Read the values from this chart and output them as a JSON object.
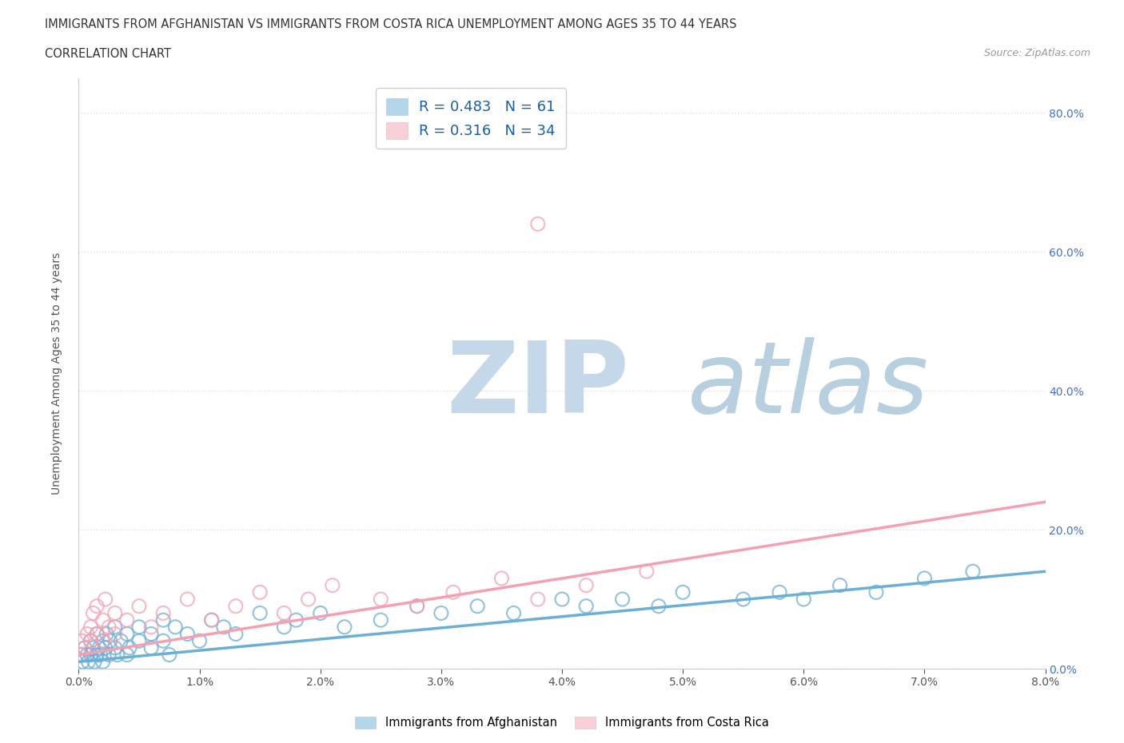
{
  "title_line1": "IMMIGRANTS FROM AFGHANISTAN VS IMMIGRANTS FROM COSTA RICA UNEMPLOYMENT AMONG AGES 35 TO 44 YEARS",
  "title_line2": "CORRELATION CHART",
  "source_text": "Source: ZipAtlas.com",
  "ylabel": "Unemployment Among Ages 35 to 44 years",
  "xlim": [
    0.0,
    0.08
  ],
  "ylim": [
    0.0,
    0.85
  ],
  "xticks": [
    0.0,
    0.01,
    0.02,
    0.03,
    0.04,
    0.05,
    0.06,
    0.07,
    0.08
  ],
  "xtick_labels": [
    "0.0%",
    "1.0%",
    "2.0%",
    "3.0%",
    "4.0%",
    "5.0%",
    "6.0%",
    "7.0%",
    "8.0%"
  ],
  "yticks": [
    0.0,
    0.2,
    0.4,
    0.6,
    0.8
  ],
  "ytick_labels": [
    "0.0%",
    "20.0%",
    "40.0%",
    "60.0%",
    "80.0%"
  ],
  "afghanistan_R": 0.483,
  "afghanistan_N": 61,
  "costarica_R": 0.316,
  "costarica_N": 34,
  "afghanistan_color": "#6baed6",
  "costarica_color": "#f4a0b0",
  "afghanistan_scatter_x": [
    0.0002,
    0.0003,
    0.0005,
    0.0007,
    0.0008,
    0.001,
    0.001,
    0.0012,
    0.0013,
    0.0015,
    0.0015,
    0.0017,
    0.0018,
    0.002,
    0.002,
    0.0022,
    0.0023,
    0.0025,
    0.0026,
    0.003,
    0.003,
    0.0032,
    0.0035,
    0.004,
    0.004,
    0.0042,
    0.005,
    0.005,
    0.006,
    0.006,
    0.007,
    0.007,
    0.0075,
    0.008,
    0.009,
    0.01,
    0.011,
    0.012,
    0.013,
    0.015,
    0.017,
    0.018,
    0.02,
    0.022,
    0.025,
    0.028,
    0.03,
    0.033,
    0.036,
    0.04,
    0.042,
    0.045,
    0.048,
    0.05,
    0.055,
    0.058,
    0.06,
    0.063,
    0.066,
    0.07,
    0.074
  ],
  "afghanistan_scatter_y": [
    0.02,
    0.01,
    0.03,
    0.02,
    0.01,
    0.04,
    0.02,
    0.03,
    0.01,
    0.02,
    0.05,
    0.03,
    0.02,
    0.04,
    0.01,
    0.03,
    0.05,
    0.02,
    0.04,
    0.03,
    0.06,
    0.02,
    0.04,
    0.05,
    0.02,
    0.03,
    0.04,
    0.06,
    0.05,
    0.03,
    0.07,
    0.04,
    0.02,
    0.06,
    0.05,
    0.04,
    0.07,
    0.06,
    0.05,
    0.08,
    0.06,
    0.07,
    0.08,
    0.06,
    0.07,
    0.09,
    0.08,
    0.09,
    0.08,
    0.1,
    0.09,
    0.1,
    0.09,
    0.11,
    0.1,
    0.11,
    0.1,
    0.12,
    0.11,
    0.13,
    0.14
  ],
  "costarica_scatter_x": [
    0.0001,
    0.0003,
    0.0005,
    0.0007,
    0.001,
    0.001,
    0.0012,
    0.0015,
    0.0015,
    0.002,
    0.002,
    0.0022,
    0.0025,
    0.003,
    0.003,
    0.004,
    0.005,
    0.006,
    0.007,
    0.009,
    0.011,
    0.013,
    0.015,
    0.017,
    0.019,
    0.021,
    0.025,
    0.028,
    0.031,
    0.035,
    0.038,
    0.042,
    0.047,
    0.038
  ],
  "costarica_scatter_y": [
    0.02,
    0.04,
    0.03,
    0.05,
    0.06,
    0.04,
    0.08,
    0.05,
    0.09,
    0.07,
    0.04,
    0.1,
    0.06,
    0.08,
    0.05,
    0.07,
    0.09,
    0.06,
    0.08,
    0.1,
    0.07,
    0.09,
    0.11,
    0.08,
    0.1,
    0.12,
    0.1,
    0.09,
    0.11,
    0.13,
    0.1,
    0.12,
    0.14,
    0.64
  ],
  "afg_trend_x0": 0.0,
  "afg_trend_y0": 0.01,
  "afg_trend_x1": 0.08,
  "afg_trend_y1": 0.14,
  "cr_trend_x0": 0.0,
  "cr_trend_y0": 0.02,
  "cr_trend_x1": 0.08,
  "cr_trend_y1": 0.24,
  "watermark_ZIP": "ZIP",
  "watermark_atlas": "atlas",
  "watermark_color_ZIP": "#c5d8ea",
  "watermark_color_atlas": "#b8cfe0",
  "background_color": "#ffffff",
  "grid_color": "#dddddd"
}
